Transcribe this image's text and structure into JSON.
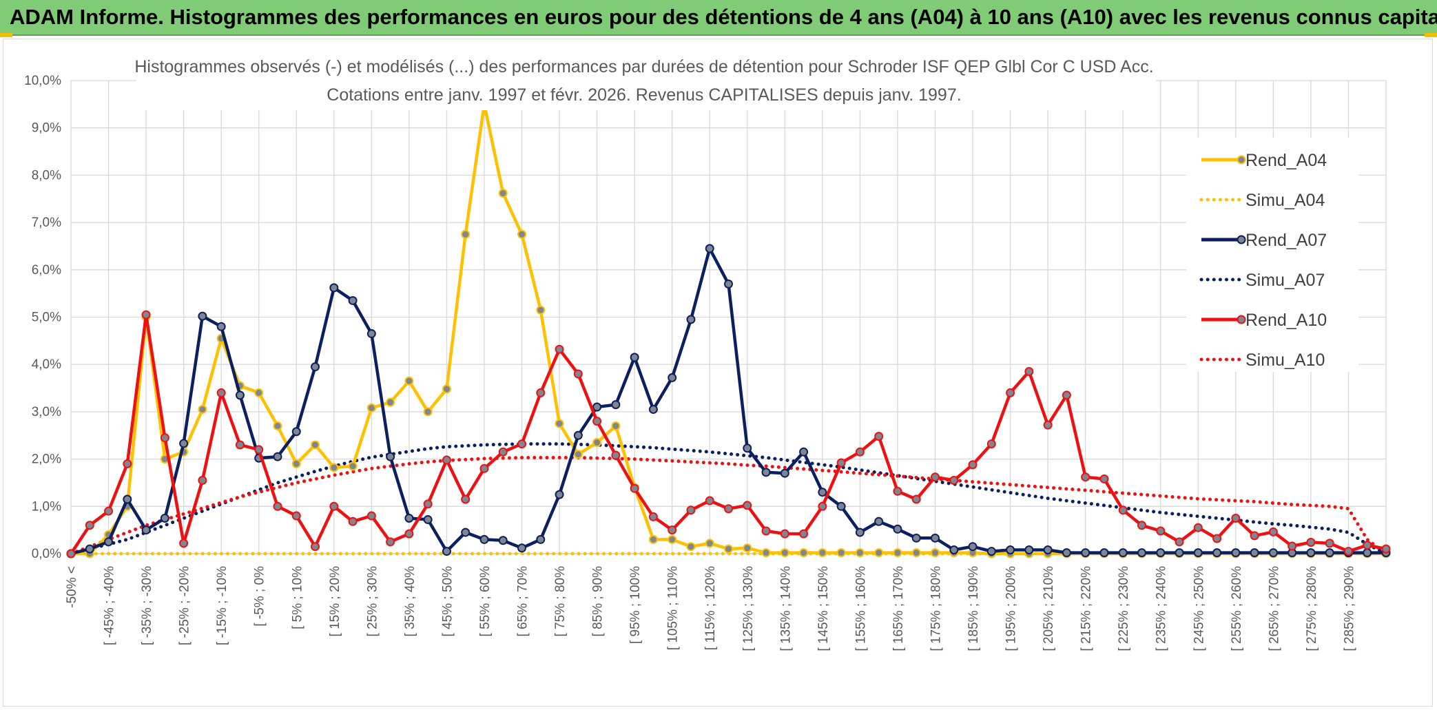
{
  "banner": {
    "title": "ADAM Informe. Histogrammes des performances en euros pour des détentions de 4 ans (A04) à 10 ans (A10) avec les revenus connus capitalisés"
  },
  "chart_data": {
    "type": "line",
    "title_line1": "Histogrammes observés (-) et modélisés (...) des performances par durées de détention pour Schroder ISF QEP Glbl Cor C USD Acc.",
    "title_line2": "Cotations entre janv. 1997 et févr. 2026. Revenus CAPITALISES depuis janv. 1997.",
    "ylim": [
      0,
      10
    ],
    "ytick_labels": [
      "0,0%",
      "1,0%",
      "2,0%",
      "3,0%",
      "4,0%",
      "5,0%",
      "6,0%",
      "7,0%",
      "8,0%",
      "9,0%",
      "10,0%"
    ],
    "grid": true,
    "legend_position": "right",
    "x_labels": [
      "-50% <",
      "[ -45% ; -40%",
      "[ -35% ; -30%",
      "[ -25% ; -20%",
      "[ -15% ; -10%",
      "[ -5% ; 0%",
      "[ 5% ; 10%",
      "[ 15% ; 20%",
      "[ 25% ; 30%",
      "[ 35% ; 40%",
      "[ 45% ; 50%",
      "[ 55% ; 60%",
      "[ 65% ; 70%",
      "[ 75% ; 80%",
      "[ 85% ; 90%",
      "[ 95% ; 100%",
      "[ 105% ; 110%",
      "[ 115% ; 120%",
      "[ 125% ; 130%",
      "[ 135% ; 140%",
      "[ 145% ; 150%",
      "[ 155% ; 160%",
      "[ 165% ; 170%",
      "[ 175% ; 180%",
      "[ 185% ; 190%",
      "[ 195% ; 200%",
      "[ 205% ; 210%",
      "[ 215% ; 220%",
      "[ 225% ; 230%",
      "[ 235% ; 240%",
      "[ 245% ; 250%",
      "[ 255% ; 260%",
      "[ 265% ; 270%",
      "[ 275% ; 280%",
      "[ 285% ; 290%"
    ],
    "series": [
      {
        "name": "Rend_A04",
        "color": "#ffc000",
        "style": "solid",
        "markers": true,
        "values": [
          0,
          0,
          0.4,
          1,
          5,
          2,
          2.15,
          3.05,
          4.55,
          3.55,
          3.4,
          2.7,
          1.9,
          2.3,
          1.82,
          1.85,
          3.08,
          3.2,
          3.65,
          3,
          3.48,
          6.75,
          9.5,
          7.62,
          6.75,
          5.15,
          2.75,
          2.1,
          2.35,
          2.7,
          1.4,
          0.3,
          0.3,
          0.15,
          0.22,
          0.1,
          0.12,
          0.02,
          0.02,
          0.02,
          0.02,
          0.02,
          0.02,
          0.02,
          0.02,
          0.02,
          0.02,
          0.02,
          0.02,
          0,
          0,
          0,
          0,
          0,
          0,
          0,
          0,
          0,
          0,
          0,
          0,
          0,
          0,
          0,
          0,
          0,
          0,
          0,
          0,
          0,
          0
        ]
      },
      {
        "name": "Simu_A04",
        "color": "#ffc000",
        "style": "dotted",
        "markers": false,
        "values": [
          0,
          0,
          0,
          0,
          0,
          0,
          0,
          0,
          0,
          0,
          0,
          0,
          0,
          0,
          0,
          0,
          0,
          0,
          0,
          0,
          0,
          0,
          0,
          0,
          0,
          0,
          0,
          0,
          0,
          0,
          0,
          0,
          0,
          0,
          0,
          0,
          0,
          0,
          0,
          0,
          0,
          0,
          0,
          0,
          0,
          0,
          0,
          0,
          0,
          0,
          0,
          0,
          0,
          0,
          0,
          0,
          0,
          0,
          0,
          0,
          0,
          0,
          0,
          0,
          0,
          0,
          0,
          0,
          0,
          0,
          0
        ]
      },
      {
        "name": "Rend_A07",
        "color": "#0a2060",
        "style": "solid",
        "markers": true,
        "values": [
          0,
          0.1,
          0.25,
          1.15,
          0.5,
          0.75,
          2.33,
          5.02,
          4.8,
          3.35,
          2.02,
          2.05,
          2.58,
          3.95,
          5.62,
          5.35,
          4.65,
          2.05,
          0.75,
          0.72,
          0.05,
          0.45,
          0.3,
          0.28,
          0.12,
          0.3,
          1.25,
          2.5,
          3.1,
          3.15,
          4.15,
          3.05,
          3.72,
          4.95,
          6.45,
          5.7,
          2.23,
          1.72,
          1.7,
          2.15,
          1.3,
          1,
          0.45,
          0.68,
          0.52,
          0.33,
          0.33,
          0.08,
          0.15,
          0.05,
          0.08,
          0.08,
          0.08,
          0.02,
          0.02,
          0.02,
          0.02,
          0.02,
          0.02,
          0.02,
          0.02,
          0.02,
          0.02,
          0.02,
          0.02,
          0.02,
          0.02,
          0.02,
          0.02,
          0.02,
          0.02
        ]
      },
      {
        "name": "Simu_A07",
        "color": "#0a2060",
        "style": "dotted",
        "markers": false,
        "values": [
          0,
          0.1,
          0.2,
          0.3,
          0.45,
          0.6,
          0.75,
          0.9,
          1.05,
          1.2,
          1.35,
          1.5,
          1.62,
          1.74,
          1.85,
          1.95,
          2.04,
          2.1,
          2.16,
          2.22,
          2.26,
          2.28,
          2.3,
          2.31,
          2.32,
          2.32,
          2.32,
          2.31,
          2.3,
          2.28,
          2.26,
          2.24,
          2.21,
          2.18,
          2.15,
          2.11,
          2.07,
          2.03,
          1.98,
          1.93,
          1.88,
          1.83,
          1.77,
          1.71,
          1.65,
          1.59,
          1.53,
          1.47,
          1.41,
          1.35,
          1.29,
          1.23,
          1.17,
          1.12,
          1.07,
          1.02,
          0.97,
          0.92,
          0.87,
          0.83,
          0.79,
          0.75,
          0.71,
          0.67,
          0.63,
          0.6,
          0.56,
          0.52,
          0.45,
          0.2,
          0
        ]
      },
      {
        "name": "Rend_A10",
        "color": "#ee1111",
        "style": "solid",
        "markers": true,
        "values": [
          0,
          0.6,
          0.9,
          1.9,
          5.05,
          2.45,
          0.22,
          1.55,
          3.4,
          2.3,
          2.2,
          1,
          0.8,
          0.15,
          1,
          0.68,
          0.8,
          0.25,
          0.42,
          1.05,
          1.98,
          1.15,
          1.8,
          2.15,
          2.32,
          3.4,
          4.32,
          3.8,
          2.8,
          2.08,
          1.38,
          0.78,
          0.5,
          0.92,
          1.12,
          0.95,
          1.02,
          0.48,
          0.42,
          0.42,
          1,
          1.92,
          2.15,
          2.48,
          1.32,
          1.15,
          1.62,
          1.55,
          1.88,
          2.32,
          3.4,
          3.85,
          2.72,
          3.35,
          1.62,
          1.58,
          0.92,
          0.6,
          0.48,
          0.25,
          0.55,
          0.32,
          0.75,
          0.38,
          0.46,
          0.16,
          0.24,
          0.22,
          0.05,
          0.18,
          0.1
        ]
      },
      {
        "name": "Simu_A10",
        "color": "#ee1111",
        "style": "dotted",
        "markers": false,
        "values": [
          0,
          0.15,
          0.3,
          0.45,
          0.6,
          0.72,
          0.84,
          0.96,
          1.08,
          1.2,
          1.3,
          1.4,
          1.5,
          1.58,
          1.66,
          1.73,
          1.8,
          1.85,
          1.9,
          1.94,
          1.97,
          1.99,
          2.01,
          2.02,
          2.03,
          2.03,
          2.03,
          2.03,
          2.02,
          2.01,
          2,
          1.98,
          1.96,
          1.94,
          1.92,
          1.9,
          1.87,
          1.85,
          1.82,
          1.79,
          1.76,
          1.73,
          1.7,
          1.67,
          1.64,
          1.61,
          1.58,
          1.55,
          1.52,
          1.49,
          1.46,
          1.43,
          1.4,
          1.37,
          1.34,
          1.31,
          1.28,
          1.25,
          1.22,
          1.19,
          1.16,
          1.14,
          1.12,
          1.1,
          1.07,
          1.04,
          1.02,
          1,
          0.95,
          0.3,
          0
        ]
      }
    ]
  }
}
